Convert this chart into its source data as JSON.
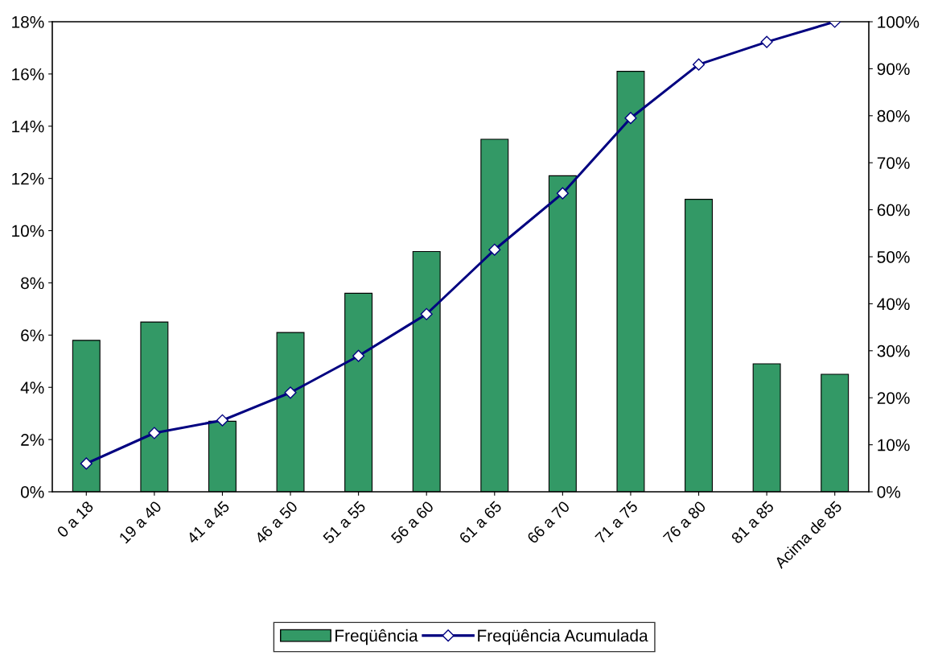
{
  "chart_data": {
    "type": "bar",
    "categories": [
      "0 a 18",
      "19 a 40",
      "41 a 45",
      "46 a 50",
      "51 a 55",
      "56 a 60",
      "61 a 65",
      "66 a 70",
      "71 a 75",
      "76 a 80",
      "81 a 85",
      "Acima de 85"
    ],
    "series": [
      {
        "name": "Freqüência",
        "color": "#339966",
        "values": [
          5.8,
          6.5,
          2.7,
          6.1,
          7.6,
          9.2,
          13.5,
          12.1,
          16.1,
          11.2,
          4.9,
          4.5
        ]
      },
      {
        "name": "Freqüência Acumulada",
        "type": "line",
        "axis": "y2",
        "color": "#000080",
        "marker": "diamond",
        "values": [
          6.0,
          12.5,
          15.2,
          21.1,
          28.9,
          37.8,
          51.5,
          63.5,
          79.5,
          90.9,
          95.7,
          100
        ]
      }
    ],
    "ylim": [
      0,
      18
    ],
    "yticks": [
      {
        "value": 0,
        "label": "0%"
      },
      {
        "value": 2,
        "label": "2%"
      },
      {
        "value": 4,
        "label": "4%"
      },
      {
        "value": 6,
        "label": "6%"
      },
      {
        "value": 8,
        "label": "8%"
      },
      {
        "value": 10,
        "label": "10%"
      },
      {
        "value": 12,
        "label": "12%"
      },
      {
        "value": 14,
        "label": "14%"
      },
      {
        "value": 16,
        "label": "16%"
      },
      {
        "value": 18,
        "label": "18%"
      }
    ],
    "y2lim": [
      0,
      100
    ],
    "y2ticks": [
      {
        "value": 0,
        "label": "0%"
      },
      {
        "value": 10,
        "label": "10%"
      },
      {
        "value": 20,
        "label": "20%"
      },
      {
        "value": 30,
        "label": "30%"
      },
      {
        "value": 40,
        "label": "40%"
      },
      {
        "value": 50,
        "label": "50%"
      },
      {
        "value": 60,
        "label": "60%"
      },
      {
        "value": 70,
        "label": "70%"
      },
      {
        "value": 80,
        "label": "80%"
      },
      {
        "value": 90,
        "label": "90%"
      },
      {
        "value": 100,
        "label": "100%"
      }
    ],
    "grid": false,
    "legend": "bottom"
  }
}
